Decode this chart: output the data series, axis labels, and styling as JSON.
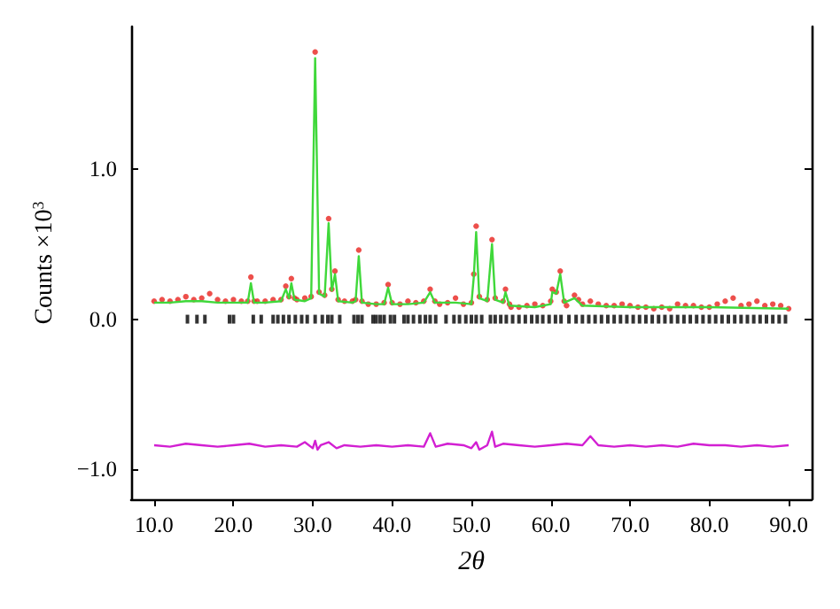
{
  "chart_data": {
    "type": "scatter",
    "xlabel": "2θ",
    "ylabel": "Counts ×10$^{3}$",
    "xlim": [
      7.1,
      92.9
    ],
    "ylim": [
      -1.2,
      1.95
    ],
    "xticks": [
      {
        "value": 10,
        "label": "10.0"
      },
      {
        "value": 20,
        "label": "20.0"
      },
      {
        "value": 30,
        "label": "30.0"
      },
      {
        "value": 40,
        "label": "40.0"
      },
      {
        "value": 50,
        "label": "50.0"
      },
      {
        "value": 60,
        "label": "60.0"
      },
      {
        "value": 70,
        "label": "70.0"
      },
      {
        "value": 80,
        "label": "80.0"
      },
      {
        "value": 90,
        "label": "90.0"
      }
    ],
    "yticks": [
      {
        "value": -1,
        "label": "−1.0"
      },
      {
        "value": 0,
        "label": "0.0"
      },
      {
        "value": 1,
        "label": "1.0"
      }
    ],
    "grid": false,
    "series": [
      {
        "marker": "circle",
        "color": "#e8231e",
        "x": [
          10,
          11,
          12,
          13,
          14,
          15,
          16,
          17,
          18,
          19,
          20,
          21,
          21.8,
          22.2,
          22.6,
          23,
          24,
          25,
          26,
          26.6,
          27,
          27.3,
          27.7,
          28,
          29,
          29.8,
          30.3,
          30.8,
          31.5,
          32,
          32.4,
          32.8,
          33.2,
          34,
          35,
          35.4,
          35.8,
          36.2,
          37,
          38,
          39,
          39.5,
          40,
          41,
          42,
          43,
          44,
          44.8,
          45.4,
          46,
          47,
          48,
          49,
          50,
          50.3,
          50.6,
          51,
          52,
          52.6,
          53,
          54,
          54.3,
          54.8,
          55,
          56,
          57,
          58,
          59,
          60,
          60.2,
          60.7,
          61.2,
          61.7,
          62,
          63,
          63.5,
          64,
          65,
          66,
          67,
          68,
          69,
          70,
          71,
          72,
          73,
          74,
          75,
          76,
          77,
          78,
          79,
          80,
          81,
          82,
          83,
          84,
          85,
          86,
          87,
          88,
          89,
          90
        ],
        "values": [
          0.12,
          0.13,
          0.12,
          0.13,
          0.15,
          0.13,
          0.14,
          0.17,
          0.13,
          0.12,
          0.13,
          0.12,
          0.12,
          0.28,
          0.12,
          0.12,
          0.12,
          0.13,
          0.13,
          0.22,
          0.15,
          0.27,
          0.14,
          0.13,
          0.14,
          0.15,
          1.78,
          0.18,
          0.16,
          0.67,
          0.2,
          0.32,
          0.13,
          0.12,
          0.12,
          0.13,
          0.46,
          0.12,
          0.1,
          0.1,
          0.11,
          0.23,
          0.11,
          0.1,
          0.12,
          0.11,
          0.12,
          0.2,
          0.12,
          0.1,
          0.11,
          0.14,
          0.1,
          0.11,
          0.3,
          0.62,
          0.15,
          0.13,
          0.53,
          0.14,
          0.12,
          0.2,
          0.1,
          0.08,
          0.08,
          0.09,
          0.1,
          0.09,
          0.12,
          0.2,
          0.18,
          0.32,
          0.12,
          0.09,
          0.16,
          0.13,
          0.1,
          0.12,
          0.1,
          0.09,
          0.09,
          0.1,
          0.09,
          0.08,
          0.08,
          0.07,
          0.08,
          0.07,
          0.1,
          0.09,
          0.09,
          0.08,
          0.08,
          0.1,
          0.12,
          0.14,
          0.09,
          0.1,
          0.12,
          0.09,
          0.1,
          0.09,
          0.07
        ]
      },
      {
        "type": "line",
        "marker": "none",
        "line_style": "solid",
        "color": "#3fd83a",
        "x": [
          10,
          12,
          14,
          16,
          18,
          20,
          21.8,
          22.2,
          22.6,
          24,
          26,
          26.6,
          27,
          27.3,
          27.7,
          29,
          29.8,
          30.3,
          30.8,
          31.5,
          32,
          32.4,
          32.8,
          33.2,
          35,
          35.4,
          35.8,
          36.2,
          38,
          39,
          39.5,
          40,
          42,
          44,
          44.8,
          45.4,
          48,
          50,
          50.3,
          50.6,
          51,
          52,
          52.6,
          53,
          54,
          54.3,
          54.8,
          58,
          60,
          60.2,
          60.7,
          61.2,
          61.7,
          63,
          64,
          70,
          80,
          90
        ],
        "values": [
          0.11,
          0.11,
          0.12,
          0.12,
          0.11,
          0.11,
          0.11,
          0.24,
          0.11,
          0.11,
          0.12,
          0.2,
          0.14,
          0.24,
          0.13,
          0.12,
          0.14,
          1.74,
          0.17,
          0.15,
          0.64,
          0.19,
          0.3,
          0.12,
          0.11,
          0.12,
          0.42,
          0.11,
          0.1,
          0.1,
          0.21,
          0.1,
          0.1,
          0.11,
          0.18,
          0.11,
          0.11,
          0.1,
          0.28,
          0.58,
          0.14,
          0.12,
          0.5,
          0.13,
          0.11,
          0.18,
          0.09,
          0.08,
          0.1,
          0.18,
          0.17,
          0.3,
          0.11,
          0.14,
          0.09,
          0.08,
          0.08,
          0.07
        ]
      },
      {
        "marker": "square",
        "color": "#000000",
        "x": [
          14.2,
          15.4,
          16.4,
          19.5,
          20,
          22.5,
          23.5,
          25,
          25.6,
          26.3,
          27,
          27.8,
          28.6,
          29.3,
          30.3,
          31.2,
          31.9,
          32.4,
          33.4,
          35.2,
          35.7,
          36.2,
          37.6,
          38,
          38.5,
          39,
          39.8,
          40.3,
          41.5,
          42,
          42.7,
          43.5,
          44.2,
          44.8,
          45.5,
          46.8,
          47.8,
          48.5,
          49.3,
          50,
          50.6,
          51.3,
          52.4,
          53,
          53.7,
          54.4,
          55.2,
          56,
          56.8,
          57.6,
          58.3,
          59,
          59.8,
          60.6,
          61.3,
          62.3,
          63.2,
          64,
          64.8,
          65.6,
          66.4,
          67.2,
          68,
          68.8,
          69.6,
          70.4,
          71.2,
          72,
          72.8,
          73.6,
          74.4,
          75.2,
          76,
          76.8,
          77.6,
          78.4,
          79.2,
          80,
          80.8,
          81.6,
          82.4,
          83.2,
          84,
          84.8,
          85.6,
          86.4,
          87.2,
          88,
          88.8,
          89.6
        ],
        "values": [
          0,
          0,
          0,
          0,
          0,
          0,
          0,
          0,
          0,
          0,
          0,
          0,
          0,
          0,
          0,
          0,
          0,
          0,
          0,
          0,
          0,
          0,
          0,
          0,
          0,
          0,
          0,
          0,
          0,
          0,
          0,
          0,
          0,
          0,
          0,
          0,
          0,
          0,
          0,
          0,
          0,
          0,
          0,
          0,
          0,
          0,
          0,
          0,
          0,
          0,
          0,
          0,
          0,
          0,
          0,
          0,
          0,
          0,
          0,
          0,
          0,
          0,
          0,
          0,
          0,
          0,
          0,
          0,
          0,
          0,
          0,
          0,
          0,
          0,
          0,
          0,
          0,
          0,
          0,
          0,
          0,
          0,
          0,
          0,
          0,
          0,
          0,
          0,
          0,
          0
        ]
      },
      {
        "type": "line",
        "marker": "none",
        "line_style": "solid",
        "color": "#d21fd2",
        "x": [
          10,
          12,
          14,
          16,
          18,
          20,
          22,
          24,
          26,
          28,
          29,
          30,
          30.3,
          30.6,
          31,
          32,
          33,
          34,
          36,
          38,
          40,
          42,
          44,
          44.8,
          45.5,
          47,
          49,
          50,
          50.6,
          51,
          52,
          52.6,
          53,
          54,
          56,
          58,
          60,
          62,
          64,
          65,
          66,
          68,
          70,
          72,
          74,
          76,
          78,
          80,
          82,
          84,
          86,
          88,
          90
        ],
        "values": [
          -0.84,
          -0.85,
          -0.83,
          -0.84,
          -0.85,
          -0.84,
          -0.83,
          -0.85,
          -0.84,
          -0.85,
          -0.82,
          -0.86,
          -0.81,
          -0.87,
          -0.84,
          -0.82,
          -0.86,
          -0.84,
          -0.85,
          -0.84,
          -0.85,
          -0.84,
          -0.85,
          -0.76,
          -0.85,
          -0.83,
          -0.84,
          -0.86,
          -0.82,
          -0.87,
          -0.84,
          -0.75,
          -0.85,
          -0.83,
          -0.84,
          -0.85,
          -0.84,
          -0.83,
          -0.84,
          -0.78,
          -0.84,
          -0.85,
          -0.84,
          -0.85,
          -0.84,
          -0.85,
          -0.83,
          -0.84,
          -0.84,
          -0.85,
          -0.84,
          -0.85,
          -0.84
        ]
      }
    ]
  }
}
